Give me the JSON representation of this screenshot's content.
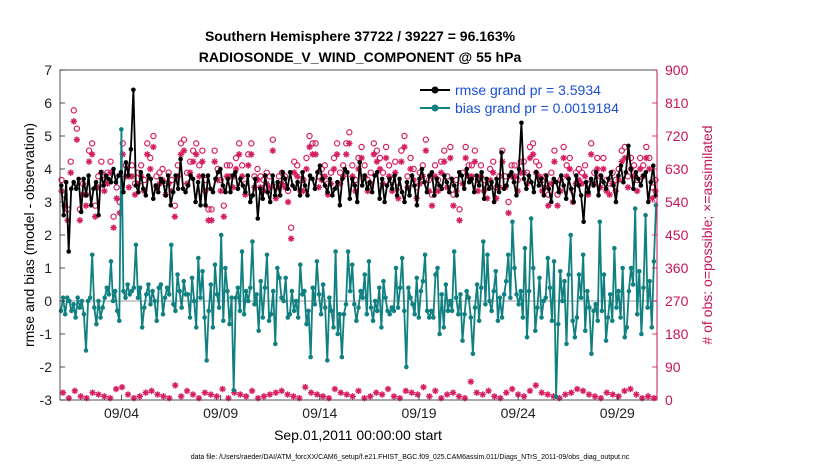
{
  "chart_data": {
    "type": "line",
    "title": "Southern Hemisphere 37722 / 39227 = 96.163%",
    "subtitle": "RADIOSONDE_V_WIND_COMPONENT @ 55 hPa",
    "xlabel": "Sep.01,2011 00:00:00 start",
    "ylabel": "rmse and bias (model - observation)",
    "ylabel_right": "# of obs: o=possible; ×=assimilated",
    "footer": "data file: /Users/raeder/DAI/ATM_forcXX/CAM6_setup/f.e21.FHIST_BGC.f09_025.CAM6assim.011/Diags_NTrS_2011-09/obs_diag_output.nc",
    "x_ticks": [
      {
        "x": 4,
        "label": "09/04"
      },
      {
        "x": 9,
        "label": "09/09"
      },
      {
        "x": 14,
        "label": "09/14"
      },
      {
        "x": 19,
        "label": "09/19"
      },
      {
        "x": 24,
        "label": "09/24"
      },
      {
        "x": 29,
        "label": "09/29"
      }
    ],
    "xlim": [
      0.9,
      31.0
    ],
    "ylim": [
      -3,
      7
    ],
    "y_ticks": [
      -3,
      -2,
      -1,
      0,
      1,
      2,
      3,
      4,
      5,
      6,
      7
    ],
    "ylim_right": [
      0,
      900
    ],
    "y_ticks_right": [
      0,
      90,
      180,
      270,
      360,
      450,
      540,
      630,
      720,
      810,
      900
    ],
    "legend_position": "top-right",
    "colors": {
      "rmse": "#000000",
      "bias": "#118080",
      "obs": "#d61f63",
      "zero_line": "#bbbbbb",
      "axis_right": "#c8145a",
      "legend_text": "#1a4fd6"
    },
    "series": [
      {
        "name": "rmse",
        "legend": "rmse grand pr = 3.5934",
        "values": [
          3.5,
          2.6,
          3.6,
          1.5,
          3.4,
          3.6,
          3.4,
          3.7,
          2.7,
          3.7,
          3.2,
          3.8,
          2.9,
          3.4,
          3.6,
          2.6,
          3.9,
          3.5,
          3.8,
          3.7,
          3.6,
          4.0,
          3.6,
          3.8,
          3.9,
          3.3,
          4.2,
          3.8,
          4.6,
          6.4,
          3.5,
          3.3,
          3.9,
          3.4,
          3.2,
          3.8,
          3.7,
          3.1,
          3.5,
          3.3,
          3.7,
          3.6,
          3.2,
          3.8,
          2.9,
          3.3,
          3.8,
          3.4,
          4.3,
          3.4,
          3.3,
          3.5,
          3.8,
          3.7,
          3.0,
          3.6,
          2.9,
          3.8,
          2.9,
          3.8,
          3.4,
          3.3,
          3.7,
          3.9,
          4.0,
          3.5,
          3.3,
          3.7,
          3.3,
          3.8,
          3.9,
          3.4,
          3.7,
          3.5,
          3.3,
          3.8,
          3.0,
          3.2,
          3.7,
          2.5,
          3.4,
          3.1,
          3.8,
          3.3,
          3.0,
          3.8,
          3.2,
          3.6,
          3.2,
          3.9,
          3.7,
          3.4,
          3.9,
          3.5,
          3.4,
          3.6,
          3.2,
          3.9,
          3.5,
          3.2,
          3.8,
          3.7,
          3.4,
          3.9,
          4.1,
          3.7,
          3.5,
          3.3,
          3.7,
          3.2,
          3.4,
          3.6,
          2.9,
          3.7,
          4.0,
          3.9,
          3.1,
          3.7,
          3.5,
          3.0,
          4.2,
          3.5,
          3.8,
          3.4,
          3.6,
          3.3,
          3.8,
          3.9,
          3.1,
          3.7,
          3.0,
          3.5,
          3.7,
          3.4,
          3.8,
          3.2,
          3.7,
          3.3,
          3.0,
          3.6,
          3.2,
          3.8,
          3.5,
          2.9,
          3.7,
          4.0,
          3.6,
          3.3,
          3.8,
          3.9,
          3.2,
          3.7,
          3.5,
          3.4,
          3.8,
          3.6,
          3.3,
          3.7,
          3.5,
          3.2,
          3.9,
          3.8,
          3.4,
          4.0,
          3.6,
          3.7,
          3.3,
          3.8,
          3.5,
          3.9,
          3.1,
          3.7,
          3.4,
          3.6,
          3.0,
          3.7,
          3.3,
          4.5,
          3.4,
          3.5,
          3.8,
          3.9,
          3.6,
          3.2,
          4.0,
          5.4,
          3.7,
          3.4,
          3.8,
          3.6,
          3.3,
          3.9,
          3.5,
          3.7,
          3.2,
          3.8,
          3.4,
          3.0,
          3.7,
          3.6,
          3.3,
          3.8,
          3.5,
          3.1,
          3.7,
          3.4,
          3.0,
          3.8,
          3.5,
          3.2,
          2.4,
          3.6,
          3.3,
          3.7,
          3.5,
          3.9,
          3.2,
          3.8,
          3.6,
          3.4,
          3.7,
          3.9,
          3.5,
          3.0,
          3.8,
          4.1,
          3.6,
          3.9,
          4.7,
          4.0,
          3.4,
          3.9,
          3.7,
          3.5,
          3.8,
          3.9,
          3.0,
          3.6,
          4.1,
          3.2
        ]
      },
      {
        "name": "bias",
        "legend": "bias grand pr = 0.0019184",
        "values": [
          -0.3,
          0.1,
          -0.4,
          0.1,
          0.0,
          -0.3,
          -0.1,
          -0.5,
          0.1,
          -0.2,
          0.0,
          -0.4,
          -1.5,
          0.0,
          0.1,
          1.4,
          -0.2,
          -0.7,
          0.0,
          -0.5,
          -0.2,
          0.1,
          0.4,
          0.2,
          1.2,
          0.0,
          0.3,
          -0.3,
          -0.6,
          5.2,
          0.3,
          0.1,
          0.5,
          0.2,
          0.3,
          0.4,
          1.7,
          0.1,
          0.4,
          -0.8,
          -0.2,
          0.2,
          0.5,
          -0.1,
          0.3,
          0.0,
          -0.6,
          0.4,
          0.5,
          -0.4,
          0.1,
          0.4,
          0.2,
          1.7,
          -0.1,
          -0.3,
          0.8,
          0.3,
          -0.2,
          0.6,
          0.2,
          0.2,
          -0.5,
          0.7,
          0.0,
          -0.8,
          1.3,
          0.1,
          0.9,
          -0.5,
          -1.8,
          -0.3,
          0.5,
          -0.8,
          1.1,
          0.2,
          -0.2,
          2.0,
          -0.6,
          1.0,
          0.3,
          -0.7,
          0.1,
          -2.7,
          0.1,
          0.4,
          -0.3,
          1.5,
          -0.4,
          0.3,
          0.0,
          0.4,
          1.8,
          -0.1,
          0.2,
          -0.9,
          0.6,
          -0.5,
          0.4,
          1.4,
          -0.6,
          -0.4,
          0.3,
          -1.3,
          1.0,
          0.7,
          0.1,
          0.0,
          0.7,
          -0.5,
          -0.4,
          0.3,
          -0.3,
          0.0,
          -0.5,
          1.1,
          0.2,
          0.3,
          -0.7,
          -0.3,
          -1.7,
          0.4,
          -0.1,
          1.2,
          0.2,
          -0.4,
          0.5,
          -0.2,
          -1.8,
          0.1,
          -0.3,
          -0.8,
          1.5,
          -1.0,
          -0.4,
          -1.7,
          -0.4,
          -0.1,
          1.5,
          0.3,
          1.1,
          -0.1,
          -0.6,
          -0.2,
          0.3,
          0.1,
          0.8,
          -0.4,
          1.2,
          -0.2,
          -0.6,
          0.0,
          -0.3,
          0.4,
          -0.8,
          0.6,
          0.1,
          -0.3,
          -0.4,
          -0.2,
          -0.3,
          1.0,
          -0.2,
          0.4,
          1.3,
          -0.3,
          -2.0,
          0.4,
          0.1,
          -0.1,
          -0.4,
          0.7,
          -0.5,
          0.3,
          0.6,
          1.4,
          -0.3,
          -0.5,
          -0.3,
          -0.5,
          0.8,
          1.0,
          -1.0,
          0.2,
          -0.8,
          0.5,
          -0.3,
          0.0,
          -0.3,
          1.5,
          0.1,
          -0.4,
          0.2,
          -1.2,
          -0.4,
          0.3,
          0.1,
          -0.5,
          -1.6,
          -0.2,
          0.5,
          -0.6,
          0.4,
          1.8,
          -0.1,
          1.4,
          0.0,
          -0.3,
          0.3,
          0.9,
          -0.6,
          0.1,
          -0.5,
          0.2,
          0.6,
          1.4,
          0.1,
          2.4,
          1.0,
          0.2,
          -0.1,
          0.3,
          -0.5,
          1.6,
          -1.1,
          0.3,
          2.5,
          1.0,
          -0.9,
          -0.2,
          0.7,
          -0.5,
          0.0,
          0.1,
          1.3,
          0.4,
          -0.6,
          1.2,
          -2.9,
          -0.7,
          0.9,
          0.0,
          0.6,
          -1.3,
          0.8,
          2.0,
          -0.6,
          -1.1,
          -0.5,
          0.8,
          0.1,
          1.4,
          -0.9,
          0.3,
          -0.2,
          -1.6,
          -0.3,
          -0.1,
          -0.6,
          2.4,
          -0.3,
          0.8,
          -1.2,
          -0.5,
          0.2,
          -0.6,
          1.6,
          -0.2,
          0.3,
          -0.5,
          1.0,
          -1.1,
          -0.8,
          0.3,
          1.0,
          0.5,
          2.8,
          -0.4,
          0.9,
          -1.0,
          0.4,
          2.6,
          -0.2,
          0.6,
          -0.8,
          1.2,
          2.9
        ]
      },
      {
        "name": "obs_possible",
        "axis": "right",
        "marker": "o",
        "values": [
          600,
          560,
          520,
          650,
          790,
          740,
          520,
          590,
          560,
          680,
          700,
          530,
          610,
          650,
          600,
          620,
          650,
          500,
          580,
          540,
          700,
          640,
          610,
          640,
          590,
          620,
          640,
          600,
          700,
          660,
          720,
          610,
          620,
          630,
          590,
          620,
          600,
          530,
          640,
          700,
          710,
          620,
          650,
          680,
          700,
          640,
          680,
          600,
          520,
          520,
          680,
          630,
          600,
          530,
          640,
          640,
          610,
          660,
          700,
          640,
          590,
          670,
          700,
          610,
          630,
          610,
          600,
          620,
          610,
          710,
          580,
          610,
          620,
          610,
          570,
          470,
          650,
          640,
          600,
          600,
          660,
          720,
          700,
          700,
          610,
          630,
          640,
          590,
          620,
          660,
          700,
          620,
          640,
          700,
          730,
          640,
          600,
          660,
          690,
          640,
          600,
          620,
          700,
          680,
          660,
          620,
          690,
          640,
          600,
          650,
          580,
          680,
          720,
          610,
          660,
          630,
          580,
          620,
          640,
          710,
          600,
          560,
          640,
          600,
          650,
          680,
          610,
          690,
          560,
          600,
          520,
          620,
          690,
          640,
          640,
          680,
          600,
          640,
          600,
          580,
          630,
          650,
          580,
          610,
          680,
          610,
          540,
          640,
          640,
          600,
          650,
          650,
          620,
          690,
          700,
          650,
          640,
          600,
          610,
          560,
          620,
          680,
          560,
          600,
          690,
          640,
          660,
          570,
          620,
          630,
          620,
          640,
          590,
          700,
          620,
          660,
          610,
          660,
          600,
          590,
          620,
          600,
          630,
          680,
          690,
          610,
          660,
          640,
          600,
          660,
          640,
          690,
          660,
          580,
          600
        ]
      },
      {
        "name": "obs_assimilated",
        "axis": "right",
        "marker": "x",
        "values": [
          570,
          530,
          490,
          620,
          760,
          710,
          490,
          560,
          530,
          650,
          670,
          500,
          580,
          620,
          570,
          590,
          620,
          470,
          550,
          510,
          670,
          610,
          580,
          610,
          560,
          590,
          610,
          570,
          670,
          630,
          690,
          580,
          590,
          600,
          560,
          590,
          570,
          500,
          610,
          670,
          680,
          590,
          620,
          650,
          670,
          610,
          650,
          570,
          490,
          490,
          650,
          600,
          570,
          500,
          610,
          610,
          580,
          630,
          670,
          610,
          560,
          640,
          670,
          580,
          600,
          580,
          570,
          590,
          580,
          680,
          550,
          580,
          590,
          580,
          540,
          440,
          620,
          610,
          570,
          570,
          630,
          690,
          670,
          670,
          580,
          600,
          610,
          560,
          590,
          630,
          670,
          590,
          610,
          670,
          700,
          610,
          570,
          630,
          660,
          610,
          570,
          590,
          670,
          650,
          630,
          590,
          660,
          610,
          570,
          620,
          550,
          650,
          690,
          580,
          630,
          600,
          550,
          590,
          610,
          680,
          570,
          530,
          610,
          570,
          620,
          650,
          580,
          660,
          530,
          570,
          490,
          590,
          660,
          610,
          610,
          650,
          570,
          610,
          570,
          550,
          600,
          620,
          550,
          580,
          650,
          580,
          510,
          610,
          610,
          570,
          620,
          620,
          590,
          660,
          670,
          620,
          610,
          570,
          580,
          530,
          590,
          650,
          530,
          570,
          660,
          610,
          630,
          540,
          590,
          600,
          590,
          610,
          560,
          670,
          590,
          630,
          580,
          630,
          570,
          560,
          590,
          570,
          600,
          650,
          660,
          580,
          630,
          610,
          570,
          630,
          610,
          660,
          630,
          550,
          570
        ]
      },
      {
        "name": "obs_count_low",
        "axis": "right",
        "marker": "x",
        "values": [
          20,
          5,
          25,
          10,
          5,
          20,
          15,
          10,
          5,
          30,
          35,
          15,
          5,
          10,
          20,
          25,
          15,
          10,
          5,
          40,
          10,
          25,
          15,
          5,
          20,
          15,
          10,
          30,
          5,
          20,
          15,
          10,
          25,
          5,
          10,
          15,
          20,
          25,
          15,
          10,
          5,
          35,
          20,
          15,
          10,
          5,
          30,
          20,
          15,
          10,
          25,
          5,
          10,
          20,
          15,
          30,
          10,
          5,
          25,
          20,
          15,
          35,
          10,
          25,
          5,
          15,
          20,
          10,
          5,
          50,
          20,
          15,
          25,
          10,
          5,
          20,
          30,
          15,
          10,
          25,
          40,
          20,
          15,
          10,
          5,
          15,
          20,
          30,
          25,
          15,
          10,
          5,
          20,
          15,
          10,
          25,
          30,
          15,
          5,
          10,
          5
        ]
      }
    ]
  }
}
